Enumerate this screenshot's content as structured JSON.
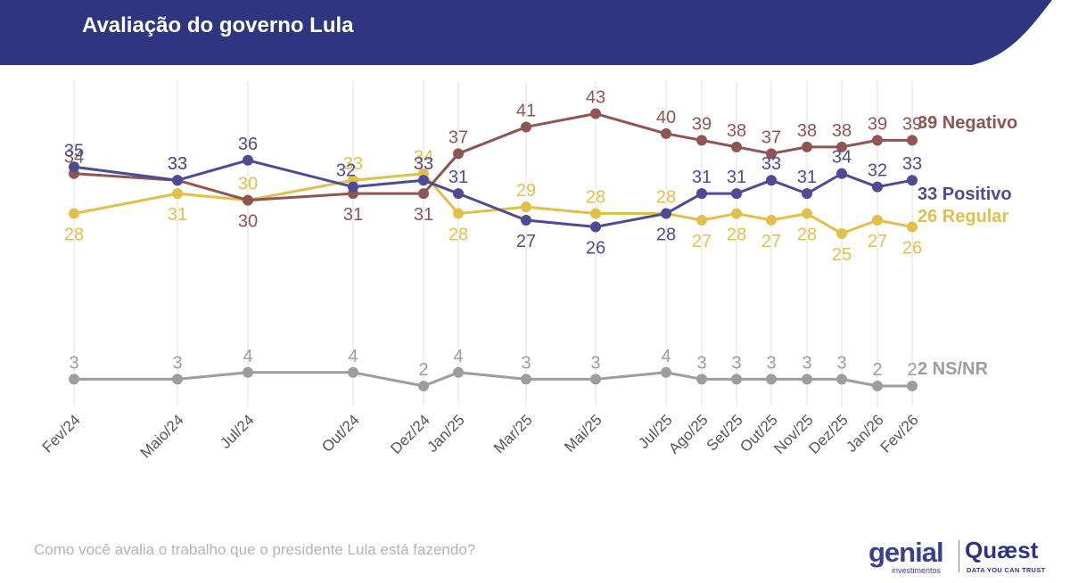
{
  "header": {
    "title": "Avaliação do governo Lula"
  },
  "footer": {
    "question": "Como você avalia o trabalho que o presidente Lula está fazendo?"
  },
  "logos": {
    "genial_word": "genial",
    "genial_sub": "investimentos",
    "quaest_word": "Quæst",
    "quaest_sub": "DATA YOU CAN TRUST"
  },
  "colors": {
    "banner": "#2e3581",
    "negativo": "#8e5553",
    "positivo": "#4e4a95",
    "regular": "#e2bf4a",
    "nsnr": "#9d9d9d",
    "grid": "#e6e6e6"
  },
  "chart_data": {
    "type": "line",
    "title": "Avaliação do governo Lula",
    "x": [
      "Fev/24",
      "Maio/24",
      "Jul/24",
      "Out/24",
      "Dez/24",
      "Jan/25",
      "Mar/25",
      "Mai/25",
      "Jul/25",
      "Ago/25",
      "Set/25",
      "Out/25",
      "Nov/25",
      "Dez/25",
      "Jan/26",
      "Fev/26"
    ],
    "ylim": [
      0,
      50
    ],
    "grid": "vertical",
    "legend": "end-labels-right",
    "series": [
      {
        "name": "Negativo",
        "end_label": "39 Negativo",
        "color_key": "negativo",
        "values": [
          34,
          33,
          30,
          31,
          31,
          37,
          41,
          43,
          40,
          39,
          38,
          37,
          38,
          38,
          39,
          39
        ]
      },
      {
        "name": "Positivo",
        "end_label": "33 Positivo",
        "color_key": "positivo",
        "values": [
          35,
          33,
          36,
          32,
          33,
          31,
          27,
          26,
          28,
          31,
          31,
          33,
          31,
          34,
          32,
          33
        ]
      },
      {
        "name": "Regular",
        "end_label": "26 Regular",
        "color_key": "regular",
        "values": [
          28,
          31,
          30,
          33,
          34,
          28,
          29,
          28,
          28,
          27,
          28,
          27,
          28,
          25,
          27,
          26
        ]
      },
      {
        "name": "NS/NR",
        "end_label": "2 NS/NR",
        "color_key": "nsnr",
        "values": [
          3,
          3,
          4,
          4,
          2,
          4,
          3,
          3,
          4,
          3,
          3,
          3,
          3,
          3,
          2,
          2
        ]
      }
    ]
  }
}
